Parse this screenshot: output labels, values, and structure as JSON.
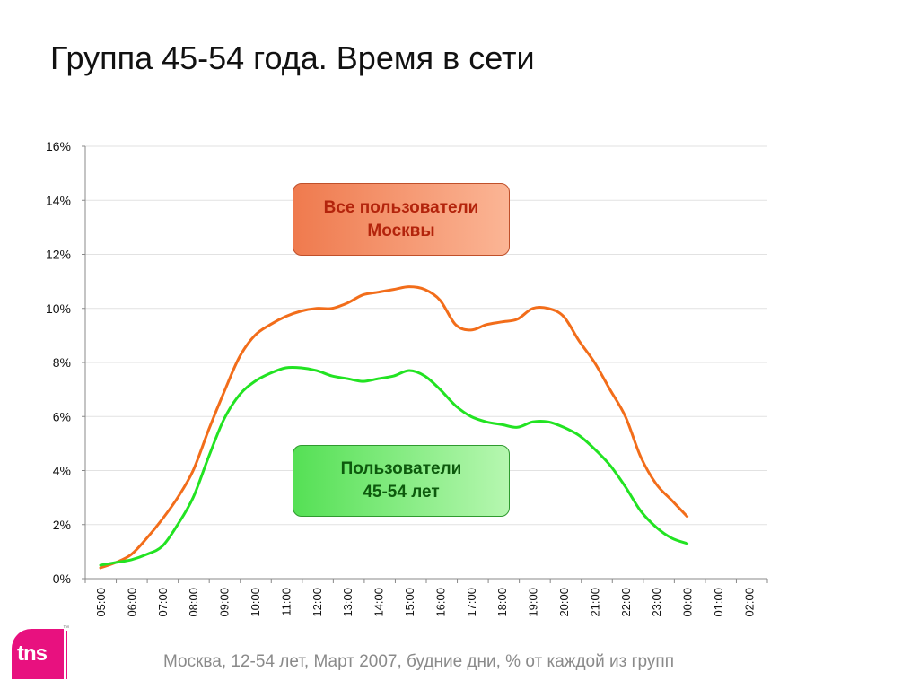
{
  "title": "Группа 45-54 года. Время в сети",
  "footer": "Москва, 12-54 лет, Март 2007, будние дни, % от каждой из групп",
  "logo": {
    "text": "tns",
    "color": "#e8117f"
  },
  "callouts": {
    "all_users": [
      "Все пользователи",
      "Москвы"
    ],
    "age_users": [
      "Пользователи",
      "45-54 лет"
    ]
  },
  "chart_data": {
    "type": "line",
    "title": "",
    "xlabel": "",
    "ylabel": "",
    "ylim": [
      0,
      16
    ],
    "y_ticks": [
      "0%",
      "2%",
      "4%",
      "6%",
      "8%",
      "10%",
      "12%",
      "14%",
      "16%"
    ],
    "grid": true,
    "x_ticks": [
      "05:00",
      "06:00",
      "07:00",
      "08:00",
      "09:00",
      "10:00",
      "11:00",
      "12:00",
      "13:00",
      "14:00",
      "15:00",
      "16:00",
      "17:00",
      "18:00",
      "19:00",
      "20:00",
      "21:00",
      "22:00",
      "23:00",
      "00:00",
      "01:00",
      "02:00"
    ],
    "series": [
      {
        "name": "Все пользователи Москвы",
        "color": "#f26d1a",
        "values": [
          0.4,
          0.6,
          0.9,
          1.5,
          2.2,
          3.0,
          4.0,
          5.5,
          6.9,
          8.2,
          9.0,
          9.4,
          9.7,
          9.9,
          10.0,
          10.0,
          10.2,
          10.5,
          10.6,
          10.7,
          10.8,
          10.7,
          10.3,
          9.4,
          9.2,
          9.4,
          9.5,
          9.6,
          10.0,
          10.0,
          9.7,
          8.8,
          8.0,
          7.0,
          6.0,
          4.5,
          3.5,
          2.9,
          2.3
        ]
      },
      {
        "name": "Пользователи 45-54 лет",
        "color": "#22e322",
        "values": [
          0.5,
          0.6,
          0.7,
          0.9,
          1.2,
          2.0,
          3.0,
          4.5,
          5.9,
          6.8,
          7.3,
          7.6,
          7.8,
          7.8,
          7.7,
          7.5,
          7.4,
          7.3,
          7.4,
          7.5,
          7.7,
          7.5,
          7.0,
          6.4,
          6.0,
          5.8,
          5.7,
          5.6,
          5.8,
          5.8,
          5.6,
          5.3,
          4.8,
          4.2,
          3.4,
          2.5,
          1.9,
          1.5,
          1.3
        ]
      }
    ]
  }
}
